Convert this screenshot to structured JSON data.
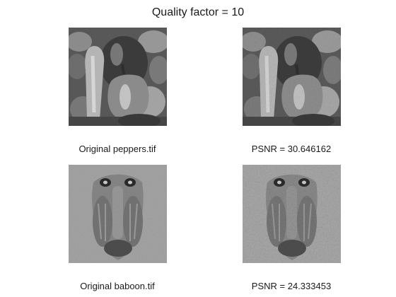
{
  "figure": {
    "title": "Quality factor = 10"
  },
  "panels": [
    {
      "caption": "Original peppers.tif",
      "image": "peppers-grayscale"
    },
    {
      "caption": "PSNR = 30.646162",
      "image": "peppers-grayscale-compressed"
    },
    {
      "caption": "Original baboon.tif",
      "image": "baboon-grayscale"
    },
    {
      "caption": "PSNR = 24.333453",
      "image": "baboon-grayscale-compressed"
    }
  ]
}
